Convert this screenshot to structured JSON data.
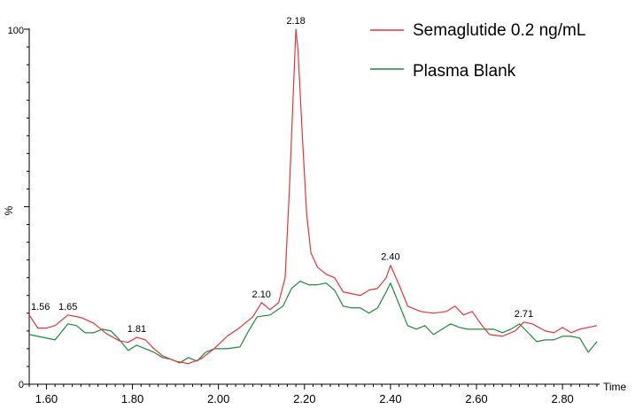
{
  "chart_data": {
    "type": "line",
    "x_axis": {
      "label": "Time",
      "range": [
        1.56,
        2.88
      ],
      "ticks": [
        1.6,
        1.8,
        2.0,
        2.2,
        2.4,
        2.6,
        2.8
      ],
      "tick_labels": [
        "1.60",
        "1.80",
        "2.00",
        "2.20",
        "2.40",
        "2.60",
        "2.80"
      ]
    },
    "y_axis": {
      "label": "%",
      "range": [
        0,
        100
      ],
      "tick_labels": [
        "0",
        "100"
      ]
    },
    "legend": {
      "position": "top-right",
      "entries": [
        {
          "label": "Semaglutide 0.2 ng/mL",
          "color": "#e8343a"
        },
        {
          "label": "Plasma Blank",
          "color": "#1e8a3c"
        }
      ]
    },
    "peak_labels": [
      {
        "text": "1.56",
        "x": 1.56,
        "y": 19.5
      },
      {
        "text": "1.65",
        "x": 1.65,
        "y": 19.5
      },
      {
        "text": "1.81",
        "x": 1.81,
        "y": 13.2
      },
      {
        "text": "2.10",
        "x": 2.1,
        "y": 23.0
      },
      {
        "text": "2.18",
        "x": 2.18,
        "y": 100
      },
      {
        "text": "2.40",
        "x": 2.4,
        "y": 33.5
      },
      {
        "text": "2.71",
        "x": 2.71,
        "y": 17.5
      }
    ],
    "series": [
      {
        "name": "Semaglutide 0.2 ng/mL",
        "color": "#e8343a",
        "points": [
          [
            1.56,
            19.5
          ],
          [
            1.58,
            15.8
          ],
          [
            1.6,
            15.8
          ],
          [
            1.62,
            16.5
          ],
          [
            1.65,
            19.5
          ],
          [
            1.68,
            18.8
          ],
          [
            1.71,
            17.2
          ],
          [
            1.74,
            14.2
          ],
          [
            1.77,
            12.2
          ],
          [
            1.79,
            11.8
          ],
          [
            1.81,
            13.2
          ],
          [
            1.83,
            12.5
          ],
          [
            1.85,
            10.0
          ],
          [
            1.87,
            8.0
          ],
          [
            1.9,
            6.5
          ],
          [
            1.93,
            5.8
          ],
          [
            1.96,
            7.2
          ],
          [
            1.99,
            10.0
          ],
          [
            2.02,
            13.5
          ],
          [
            2.05,
            16.0
          ],
          [
            2.08,
            19.0
          ],
          [
            2.1,
            23.0
          ],
          [
            2.12,
            21.0
          ],
          [
            2.14,
            23.0
          ],
          [
            2.155,
            30.0
          ],
          [
            2.165,
            55.0
          ],
          [
            2.175,
            85.0
          ],
          [
            2.18,
            100.0
          ],
          [
            2.185,
            94.0
          ],
          [
            2.195,
            70.0
          ],
          [
            2.205,
            48.0
          ],
          [
            2.215,
            37.0
          ],
          [
            2.23,
            33.0
          ],
          [
            2.25,
            31.0
          ],
          [
            2.27,
            30.0
          ],
          [
            2.29,
            26.0
          ],
          [
            2.31,
            25.5
          ],
          [
            2.33,
            25.0
          ],
          [
            2.35,
            26.5
          ],
          [
            2.37,
            27.0
          ],
          [
            2.39,
            30.0
          ],
          [
            2.4,
            33.5
          ],
          [
            2.42,
            28.0
          ],
          [
            2.44,
            22.0
          ],
          [
            2.47,
            20.5
          ],
          [
            2.5,
            20.0
          ],
          [
            2.53,
            20.5
          ],
          [
            2.55,
            22.0
          ],
          [
            2.57,
            19.5
          ],
          [
            2.59,
            20.5
          ],
          [
            2.61,
            17.0
          ],
          [
            2.63,
            14.0
          ],
          [
            2.66,
            13.5
          ],
          [
            2.69,
            15.0
          ],
          [
            2.71,
            17.5
          ],
          [
            2.73,
            17.0
          ],
          [
            2.76,
            15.0
          ],
          [
            2.78,
            14.5
          ],
          [
            2.8,
            16.0
          ],
          [
            2.82,
            14.5
          ],
          [
            2.84,
            15.5
          ],
          [
            2.86,
            16.0
          ],
          [
            2.88,
            16.5
          ]
        ]
      },
      {
        "name": "Plasma Blank",
        "color": "#1e8a3c",
        "points": [
          [
            1.56,
            14.0
          ],
          [
            1.58,
            13.5
          ],
          [
            1.6,
            13.0
          ],
          [
            1.62,
            12.5
          ],
          [
            1.65,
            17.0
          ],
          [
            1.67,
            16.5
          ],
          [
            1.69,
            14.5
          ],
          [
            1.71,
            14.5
          ],
          [
            1.73,
            15.5
          ],
          [
            1.75,
            15.0
          ],
          [
            1.77,
            12.5
          ],
          [
            1.79,
            9.5
          ],
          [
            1.81,
            11.0
          ],
          [
            1.83,
            10.0
          ],
          [
            1.85,
            9.0
          ],
          [
            1.87,
            7.5
          ],
          [
            1.89,
            7.0
          ],
          [
            1.91,
            6.0
          ],
          [
            1.93,
            7.5
          ],
          [
            1.95,
            6.5
          ],
          [
            1.97,
            9.0
          ],
          [
            1.99,
            10.0
          ],
          [
            2.02,
            10.0
          ],
          [
            2.05,
            10.5
          ],
          [
            2.07,
            15.0
          ],
          [
            2.09,
            19.0
          ],
          [
            2.12,
            19.5
          ],
          [
            2.15,
            22.0
          ],
          [
            2.17,
            27.0
          ],
          [
            2.19,
            29.0
          ],
          [
            2.21,
            28.0
          ],
          [
            2.23,
            28.0
          ],
          [
            2.25,
            28.5
          ],
          [
            2.27,
            26.5
          ],
          [
            2.29,
            22.0
          ],
          [
            2.31,
            21.5
          ],
          [
            2.33,
            21.5
          ],
          [
            2.35,
            20.0
          ],
          [
            2.37,
            21.5
          ],
          [
            2.39,
            26.0
          ],
          [
            2.4,
            28.5
          ],
          [
            2.42,
            22.5
          ],
          [
            2.44,
            16.5
          ],
          [
            2.46,
            15.5
          ],
          [
            2.48,
            16.5
          ],
          [
            2.5,
            14.0
          ],
          [
            2.52,
            15.5
          ],
          [
            2.54,
            17.0
          ],
          [
            2.56,
            16.0
          ],
          [
            2.58,
            15.5
          ],
          [
            2.61,
            15.5
          ],
          [
            2.64,
            15.5
          ],
          [
            2.66,
            14.5
          ],
          [
            2.68,
            15.5
          ],
          [
            2.7,
            17.0
          ],
          [
            2.72,
            14.5
          ],
          [
            2.74,
            12.0
          ],
          [
            2.76,
            12.5
          ],
          [
            2.78,
            12.5
          ],
          [
            2.8,
            13.5
          ],
          [
            2.82,
            13.5
          ],
          [
            2.84,
            13.0
          ],
          [
            2.86,
            9.0
          ],
          [
            2.88,
            12.0
          ]
        ]
      }
    ]
  }
}
